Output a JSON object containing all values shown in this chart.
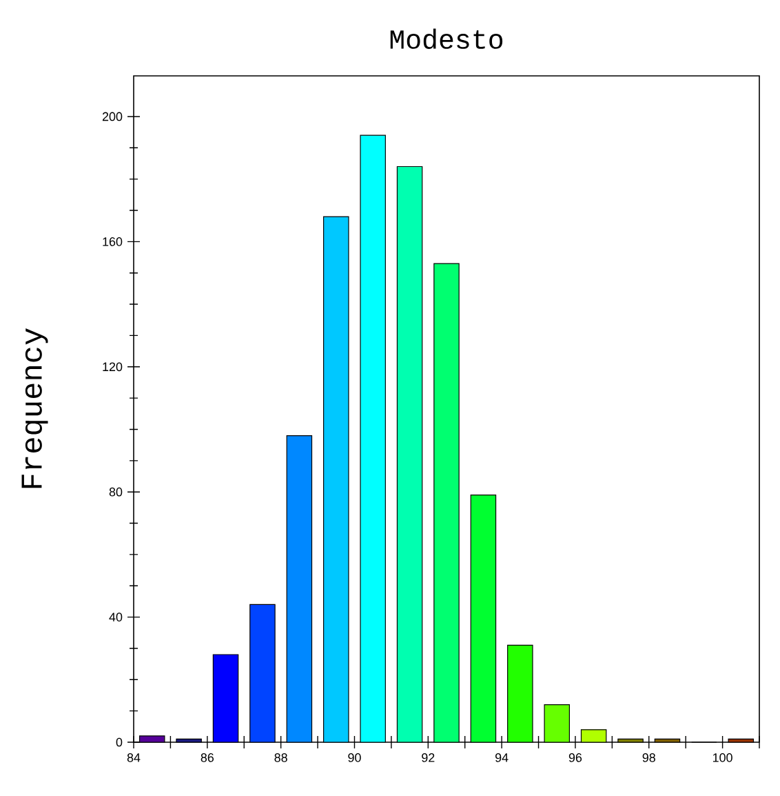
{
  "chart_data": {
    "type": "histogram",
    "title": "Modesto",
    "ylabel": "Frequency",
    "bins": [
      84,
      85,
      86,
      87,
      88,
      89,
      90,
      91,
      92,
      93,
      94,
      95,
      96,
      97,
      98,
      99,
      100,
      101
    ],
    "values": [
      2,
      1,
      28,
      44,
      98,
      168,
      194,
      184,
      153,
      79,
      31,
      12,
      4,
      1,
      1,
      0,
      1
    ],
    "colors": [
      "#550099",
      "#1a1a80",
      "#0000ff",
      "#0044ff",
      "#0088ff",
      "#00c8ff",
      "#00ffff",
      "#00ffb0",
      "#00ff70",
      "#00ff30",
      "#22ff00",
      "#66ff00",
      "#b0ff00",
      "#808000",
      "#806000",
      "#804000",
      "#993300"
    ],
    "xlim": [
      84,
      101
    ],
    "ylim": [
      0,
      213
    ],
    "xticks": [
      84,
      {
        "value": 85,
        "label": null
      },
      86,
      {
        "value": 87,
        "label": null
      },
      88,
      {
        "value": 89,
        "label": null
      },
      90,
      {
        "value": 91,
        "label": null
      },
      92,
      {
        "value": 93,
        "label": null
      },
      94,
      {
        "value": 95,
        "label": null
      },
      96,
      {
        "value": 97,
        "label": null
      },
      98,
      {
        "value": 99,
        "label": null
      },
      100,
      {
        "value": 101,
        "label": null
      }
    ],
    "yticks": [
      0,
      40,
      80,
      120,
      160,
      200
    ]
  }
}
